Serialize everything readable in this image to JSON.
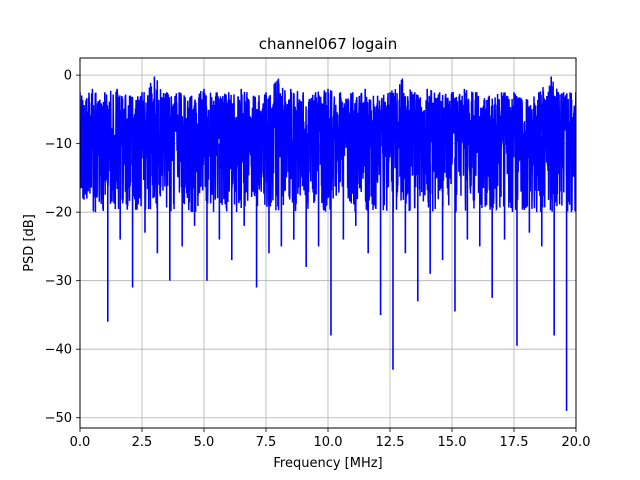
{
  "chart_data": {
    "type": "line",
    "title": "channel067 logain",
    "xlabel": "Frequency [MHz]",
    "ylabel": "PSD [dB]",
    "xlim": [
      0.0,
      20.0
    ],
    "ylim": [
      -51.5,
      2.5
    ],
    "xticks": [
      0.0,
      2.5,
      5.0,
      7.5,
      10.0,
      12.5,
      15.0,
      17.5,
      20.0
    ],
    "xtick_labels": [
      "0.0",
      "2.5",
      "5.0",
      "7.5",
      "10.0",
      "12.5",
      "15.0",
      "17.5",
      "20.0"
    ],
    "yticks": [
      0,
      -10,
      -20,
      -30,
      -40,
      -50
    ],
    "ytick_labels": [
      "0",
      "−10",
      "−20",
      "−30",
      "−40",
      "−50"
    ],
    "grid": true,
    "line_color": "#0000ff",
    "series": [
      {
        "x": [
          0.0,
          0.5,
          1.0,
          1.5,
          2.0,
          2.5,
          3.0,
          3.5,
          4.0,
          4.5,
          5.0,
          5.5,
          6.0,
          6.5,
          7.0,
          7.5,
          8.0,
          8.5,
          9.0,
          9.5,
          10.0,
          10.5,
          11.0,
          11.5,
          12.0,
          12.5,
          13.0,
          13.5,
          14.0,
          14.5,
          15.0,
          15.5,
          16.0,
          16.5,
          17.0,
          17.5,
          18.0,
          18.5,
          19.0,
          19.5,
          20.0
        ],
        "values": [
          -11,
          -9,
          -14,
          -10,
          -12,
          -8,
          -13,
          -10,
          -11,
          -9,
          -12,
          -10,
          -14,
          -11,
          -10,
          -12,
          -9,
          -13,
          -11,
          -10,
          -12,
          -11,
          -9,
          -13,
          -10,
          -12,
          -11,
          -10,
          -13,
          -9,
          -12,
          -10,
          -11,
          -13,
          -10,
          -12,
          -11,
          -9,
          -12,
          -10,
          -11
        ],
        "upper": [
          -2.5,
          -2.0,
          -2.5,
          -2.0,
          -3.0,
          -2.5,
          -0.2,
          -2.5,
          -2.5,
          -3.0,
          -2.0,
          -2.5,
          -2.5,
          -2.0,
          -3.0,
          -2.5,
          -0.5,
          -2.0,
          -2.5,
          -2.5,
          -2.0,
          -2.5,
          -2.5,
          -2.0,
          -3.0,
          -2.5,
          -0.5,
          -2.5,
          -2.0,
          -2.5,
          -2.5,
          -2.0,
          -2.5,
          -3.0,
          -2.5,
          -2.5,
          -3.5,
          -2.5,
          -0.2,
          -2.5,
          -2.5
        ],
        "lower": [
          -18,
          -20,
          -36,
          -24,
          -31,
          -23,
          -26,
          -30,
          -25,
          -22,
          -30,
          -24,
          -27,
          -22,
          -31,
          -26,
          -25,
          -24,
          -28,
          -25,
          -38,
          -24,
          -22,
          -26,
          -35,
          -43,
          -26,
          -33,
          -29,
          -27,
          -34.5,
          -24,
          -25,
          -32.5,
          -24,
          -39.5,
          -23,
          -25,
          -38,
          -49,
          -20
        ]
      }
    ]
  }
}
